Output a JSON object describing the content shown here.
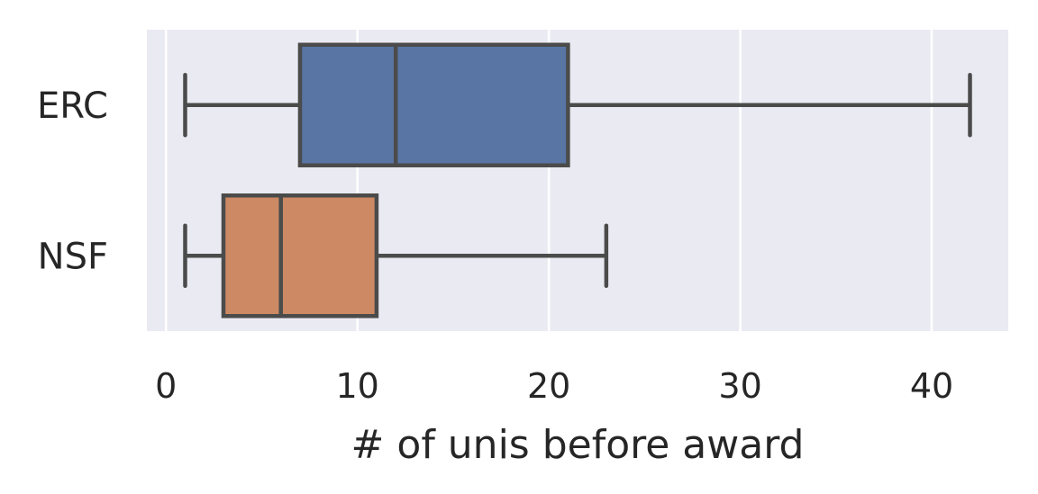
{
  "chart_data": {
    "type": "boxplot",
    "orientation": "horizontal",
    "xlabel": "# of unis before award",
    "ylabel": "",
    "xlim": [
      -1,
      44
    ],
    "xticks": [
      0,
      10,
      20,
      30,
      40
    ],
    "xtick_labels": [
      "0",
      "10",
      "20",
      "30",
      "40"
    ],
    "grid": true,
    "categories": [
      "ERC",
      "NSF"
    ],
    "series": [
      {
        "category": "ERC",
        "whisker_low": 1,
        "q1": 7,
        "median": 12,
        "q3": 21,
        "whisker_high": 42,
        "color": "#5875a4"
      },
      {
        "category": "NSF",
        "whisker_low": 1,
        "q1": 3,
        "median": 6,
        "q3": 11,
        "whisker_high": 23,
        "color": "#cc8963"
      }
    ],
    "colors": {
      "background": "#eaeaf2",
      "grid": "#ffffff",
      "line": "#4b4b4b"
    }
  }
}
